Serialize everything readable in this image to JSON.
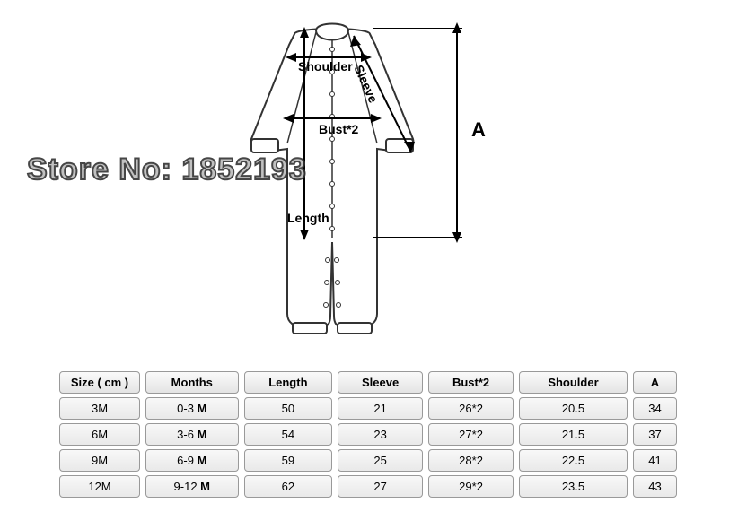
{
  "watermark": "Store No: 1852193",
  "diagram": {
    "labels": {
      "shoulder": "Shoulder",
      "sleeve": "Sleeve",
      "bust": "Bust*2",
      "length": "Length",
      "A": "A"
    },
    "colors": {
      "stroke": "#333333",
      "bg": "#ffffff",
      "cuff": "#eeeeee"
    }
  },
  "table": {
    "headers": [
      "Size ( cm )",
      "Months",
      "Length",
      "Sleeve",
      "Bust*2",
      "Shoulder",
      "A"
    ],
    "rows": [
      [
        "3M",
        "0-3 M",
        "50",
        "21",
        "26*2",
        "20.5",
        "34"
      ],
      [
        "6M",
        "3-6 M",
        "54",
        "23",
        "27*2",
        "21.5",
        "37"
      ],
      [
        "9M",
        "6-9 M",
        "59",
        "25",
        "28*2",
        "22.5",
        "41"
      ],
      [
        "12M",
        "9-12 M",
        "62",
        "27",
        "29*2",
        "23.5",
        "43"
      ]
    ]
  }
}
